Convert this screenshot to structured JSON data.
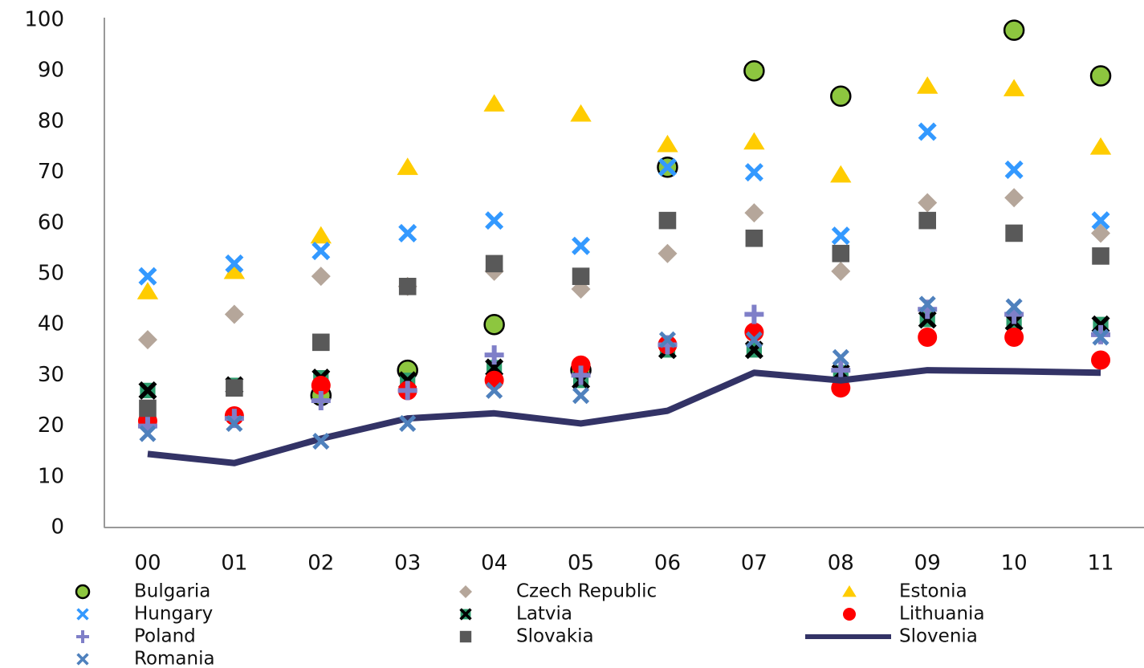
{
  "chart_data": {
    "type": "scatter",
    "categories": [
      "00",
      "01",
      "02",
      "03",
      "04",
      "05",
      "06",
      "07",
      "08",
      "09",
      "10",
      "11"
    ],
    "ylim": [
      0,
      100
    ],
    "yticks": [
      0,
      10,
      20,
      30,
      40,
      50,
      60,
      70,
      80,
      90,
      100
    ],
    "grid": false,
    "series": [
      {
        "name": "Bulgaria",
        "color": "#8dc63f",
        "marker": "circle",
        "values": [
          null,
          null,
          26,
          31,
          40,
          31,
          71,
          90,
          85,
          null,
          98,
          89
        ]
      },
      {
        "name": "Czech Republic",
        "color": "#b5a69a",
        "marker": "diamond",
        "values": [
          37,
          42,
          49.5,
          47.5,
          50.5,
          47,
          54,
          62,
          50.5,
          64,
          65,
          58
        ]
      },
      {
        "name": "Estonia",
        "color": "#ffcc00",
        "marker": "triangle",
        "values": [
          46.5,
          50.5,
          57.5,
          71,
          83.5,
          81.5,
          75.5,
          76,
          69.5,
          87,
          86.5,
          75
        ]
      },
      {
        "name": "Hungary",
        "color": "#3399ff",
        "marker": "x",
        "values": [
          49.5,
          52,
          54.5,
          58,
          60.5,
          55.5,
          71,
          70,
          57.5,
          78,
          70.5,
          60.5
        ]
      },
      {
        "name": "Latvia",
        "color": "#2e9e6e",
        "marker": "square-x",
        "values": [
          27,
          28,
          29.5,
          29,
          31.5,
          29,
          35,
          35,
          30.5,
          41,
          40.5,
          40
        ]
      },
      {
        "name": "Lithuania",
        "color": "#ff0000",
        "marker": "dot",
        "values": [
          21,
          22,
          28,
          27,
          29,
          32,
          36,
          38.5,
          27.5,
          37.5,
          37.5,
          33
        ]
      },
      {
        "name": "Poland",
        "color": "#7f7fc8",
        "marker": "plus",
        "values": [
          20,
          21.5,
          25,
          27,
          34,
          30,
          36,
          42,
          31,
          43,
          42,
          38
        ]
      },
      {
        "name": "Slovakia",
        "color": "#595959",
        "marker": "square",
        "values": [
          23.5,
          27.5,
          36.5,
          47.5,
          52,
          49.5,
          60.5,
          57,
          54,
          60.5,
          58,
          53.5
        ]
      },
      {
        "name": "Slovenia",
        "color": "#333366",
        "marker": "line",
        "values": [
          14.5,
          12.7,
          17.5,
          21.5,
          22.5,
          20.5,
          23,
          30.5,
          29,
          31,
          30.8,
          30.5
        ]
      },
      {
        "name": "Romania",
        "color": "#4f81bd",
        "marker": "x",
        "values": [
          18.5,
          20.5,
          17,
          20.5,
          27,
          26,
          37,
          37,
          33.5,
          44,
          43.5,
          37.5
        ]
      }
    ]
  }
}
